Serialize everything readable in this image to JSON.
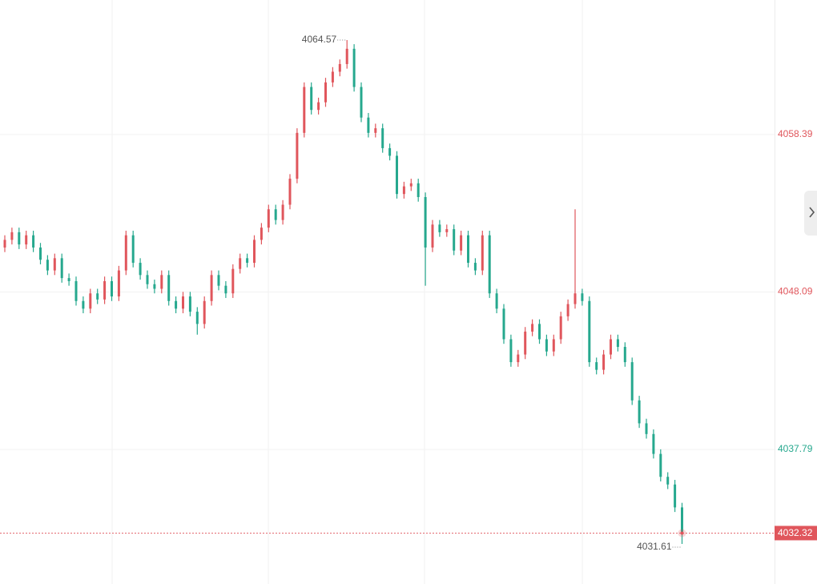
{
  "chart_data": {
    "type": "candlestick",
    "up_color": "#e0565c",
    "down_color": "#26a88e",
    "ylim": [
      4028.99,
      4067.19
    ],
    "yticks": [
      4037.79,
      4048.09,
      4058.39
    ],
    "ytick_colors": [
      "#26a88e",
      "#e0565c",
      "#e0565c"
    ],
    "grid": true,
    "last_price": 4032.32,
    "high_marker": 4064.57,
    "low_marker": 4031.61,
    "open": [
      4051.0,
      4051.5,
      4052.0,
      4051.2,
      4051.8,
      4051.0,
      4050.2,
      4049.5,
      4050.3,
      4049.0,
      4048.8,
      4047.5,
      4047.0,
      4048.0,
      4047.6,
      4048.8,
      4047.8,
      4049.5,
      4051.8,
      4050.0,
      4049.2,
      4048.6,
      4048.3,
      4049.2,
      4047.5,
      4047.0,
      4047.8,
      4046.8,
      4046.0,
      4047.5,
      4049.2,
      4048.5,
      4048.0,
      4049.6,
      4050.3,
      4050.0,
      4051.5,
      4052.3,
      4053.5,
      4052.8,
      4053.8,
      4055.5,
      4058.5,
      4061.5,
      4060.0,
      4060.5,
      4061.8,
      4062.5,
      4063.0,
      4064.0,
      4061.5,
      4059.5,
      4058.5,
      4058.8,
      4057.5,
      4057.0,
      4054.5,
      4055.0,
      4055.2,
      4054.3,
      4051.0,
      4052.5,
      4052.0,
      4052.2,
      4050.8,
      4051.8,
      4050.0,
      4049.5,
      4051.8,
      4048.0,
      4047.0,
      4045.0,
      4043.5,
      4044.0,
      4045.5,
      4046.0,
      4045.0,
      4044.2,
      4045.0,
      4046.5,
      4047.3,
      4048.0,
      4047.5,
      4043.5,
      4043.0,
      4044.0,
      4045.0,
      4044.5,
      4043.5,
      4041.0,
      4039.5,
      4038.8,
      4037.5,
      4036.0,
      4035.5,
      4034.0
    ],
    "high": [
      4051.8,
      4052.3,
      4052.3,
      4052.1,
      4052.1,
      4051.3,
      4050.5,
      4050.6,
      4050.6,
      4049.3,
      4049.1,
      4047.8,
      4048.3,
      4048.3,
      4049.1,
      4049.1,
      4049.8,
      4052.1,
      4052.1,
      4050.3,
      4049.5,
      4048.9,
      4049.5,
      4049.5,
      4047.8,
      4048.1,
      4048.1,
      4047.1,
      4047.8,
      4049.5,
      4049.5,
      4048.8,
      4049.9,
      4050.6,
      4050.6,
      4051.8,
      4052.6,
      4053.8,
      4053.8,
      4054.1,
      4055.8,
      4058.8,
      4061.8,
      4061.8,
      4060.8,
      4062.1,
      4062.8,
      4063.3,
      4064.57,
      4064.3,
      4061.8,
      4059.8,
      4059.1,
      4059.1,
      4057.8,
      4057.3,
      4055.3,
      4055.5,
      4055.5,
      4054.6,
      4052.8,
      4052.8,
      4052.5,
      4052.5,
      4052.1,
      4052.1,
      4050.3,
      4052.1,
      4052.1,
      4048.3,
      4047.3,
      4045.3,
      4044.3,
      4045.8,
      4046.3,
      4046.3,
      4045.3,
      4045.3,
      4046.8,
      4047.6,
      4053.5,
      4048.3,
      4047.8,
      4043.8,
      4044.3,
      4045.3,
      4045.3,
      4044.8,
      4043.8,
      4041.3,
      4039.8,
      4039.1,
      4037.8,
      4036.3,
      4035.8,
      4034.3
    ],
    "low": [
      4050.7,
      4051.2,
      4050.9,
      4050.9,
      4050.7,
      4049.9,
      4049.2,
      4049.2,
      4048.7,
      4048.5,
      4047.2,
      4046.7,
      4046.7,
      4047.3,
      4047.3,
      4047.5,
      4047.5,
      4049.2,
      4049.7,
      4048.9,
      4048.3,
      4048.0,
      4048.0,
      4047.2,
      4046.7,
      4046.7,
      4046.5,
      4045.3,
      4045.7,
      4047.2,
      4048.2,
      4047.7,
      4047.7,
      4049.3,
      4049.7,
      4049.7,
      4051.2,
      4052.0,
      4052.5,
      4052.5,
      4053.5,
      4055.2,
      4058.2,
      4059.7,
      4059.7,
      4060.2,
      4061.5,
      4062.2,
      4062.7,
      4061.2,
      4059.2,
      4058.2,
      4058.2,
      4057.2,
      4056.7,
      4054.2,
      4054.2,
      4054.7,
      4054.0,
      4048.5,
      4050.7,
      4051.7,
      4051.7,
      4050.5,
      4050.5,
      4049.7,
      4049.2,
      4049.2,
      4047.7,
      4046.7,
      4044.7,
      4043.2,
      4043.2,
      4043.7,
      4045.2,
      4044.7,
      4043.9,
      4043.9,
      4044.7,
      4046.2,
      4047.0,
      4047.2,
      4043.2,
      4042.7,
      4042.7,
      4043.7,
      4044.2,
      4043.2,
      4040.7,
      4039.2,
      4038.5,
      4037.2,
      4035.7,
      4035.2,
      4033.7,
      4031.61
    ],
    "close": [
      4051.5,
      4052.0,
      4051.2,
      4051.8,
      4051.0,
      4050.2,
      4049.5,
      4050.3,
      4049.0,
      4048.8,
      4047.5,
      4047.0,
      4048.0,
      4047.6,
      4048.8,
      4047.8,
      4049.5,
      4051.8,
      4050.0,
      4049.2,
      4048.6,
      4048.3,
      4049.2,
      4047.5,
      4047.0,
      4047.8,
      4046.8,
      4046.0,
      4047.5,
      4049.2,
      4048.5,
      4048.0,
      4049.6,
      4050.3,
      4050.0,
      4051.5,
      4052.3,
      4053.5,
      4052.8,
      4053.8,
      4055.5,
      4058.5,
      4061.5,
      4060.0,
      4060.5,
      4061.8,
      4062.5,
      4063.0,
      4064.0,
      4061.5,
      4059.5,
      4058.5,
      4058.8,
      4057.5,
      4057.0,
      4054.5,
      4055.0,
      4055.2,
      4054.3,
      4051.0,
      4052.5,
      4052.0,
      4052.2,
      4050.8,
      4051.8,
      4050.0,
      4049.5,
      4051.8,
      4048.0,
      4047.0,
      4045.0,
      4043.5,
      4044.0,
      4045.5,
      4046.0,
      4045.0,
      4044.2,
      4045.0,
      4046.5,
      4047.3,
      4048.0,
      4047.5,
      4043.5,
      4043.0,
      4044.0,
      4045.0,
      4044.5,
      4043.5,
      4041.0,
      4039.5,
      4038.8,
      4037.5,
      4036.0,
      4035.5,
      4034.0,
      4032.32
    ]
  }
}
